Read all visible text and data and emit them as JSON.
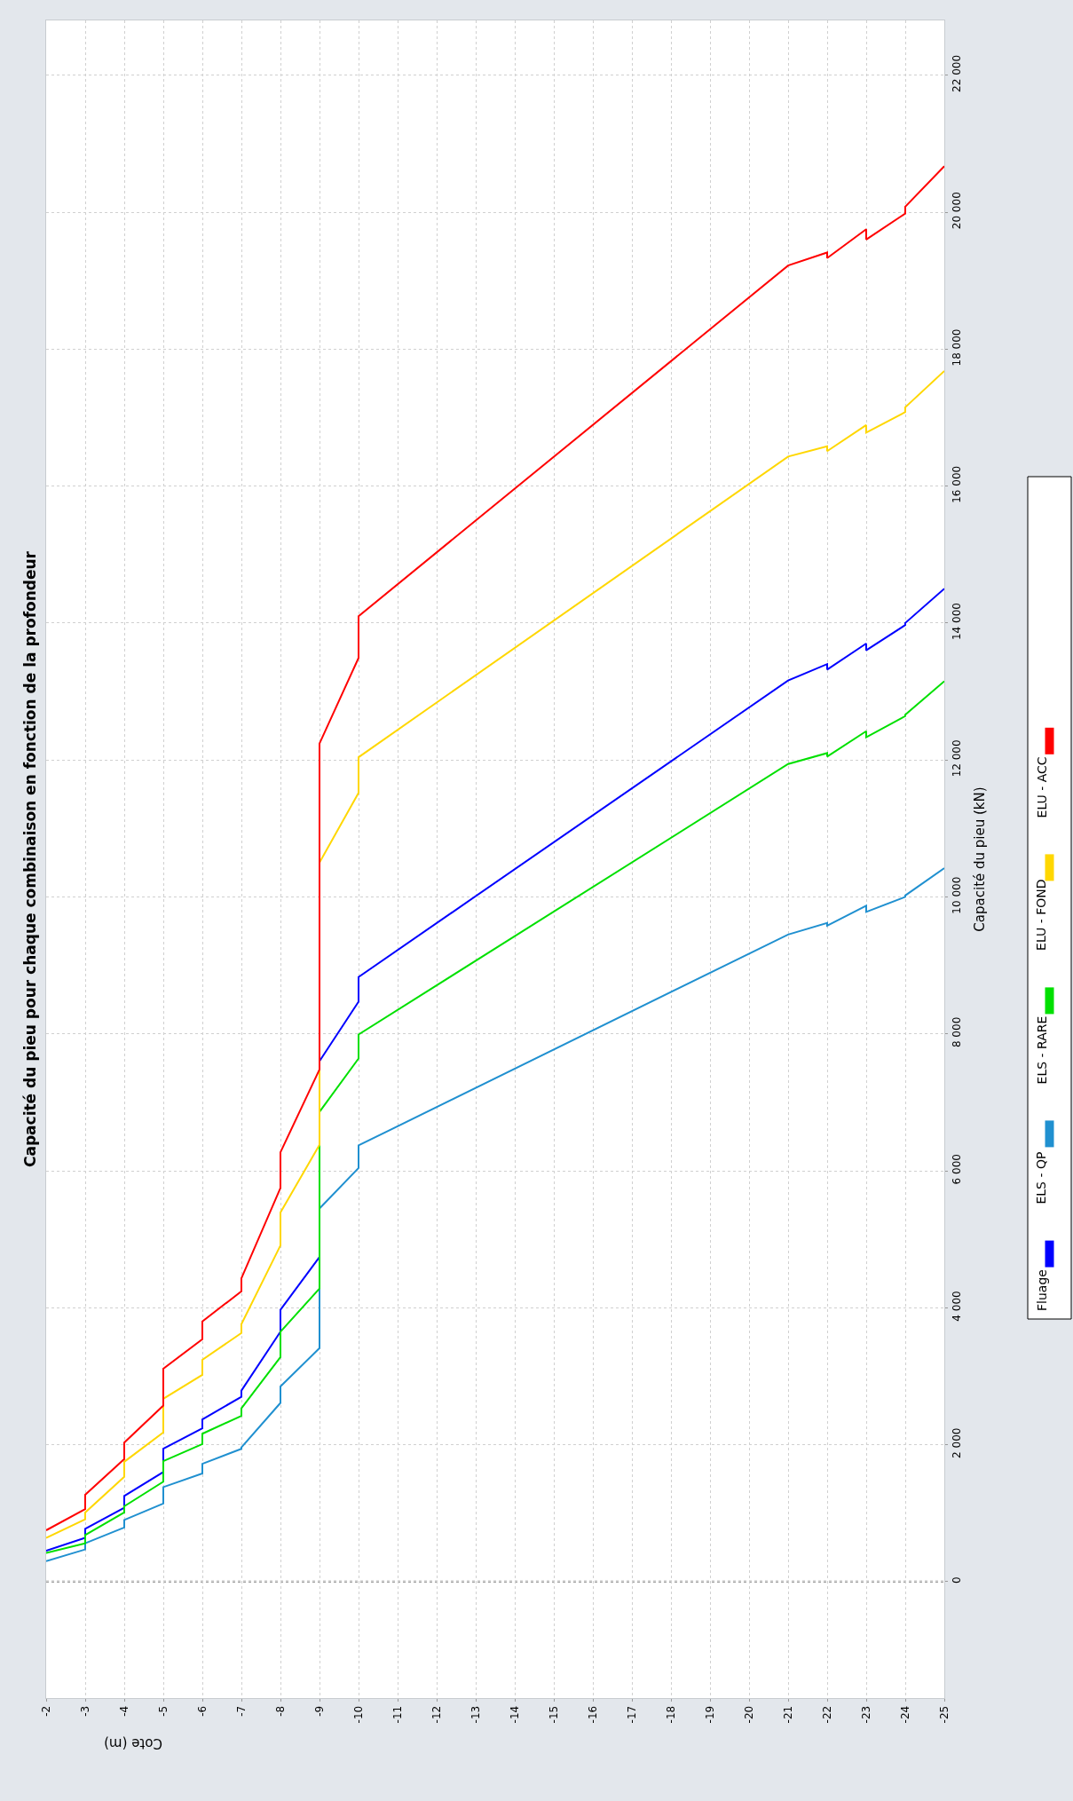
{
  "chart_data": {
    "type": "line",
    "title": "Capacité du pieu pour chaque combinaison en fonction de la profondeur",
    "xlabel": "Cote (m)",
    "ylabel": "Capacité du pieu (kN)",
    "xlim": [
      -2,
      -25
    ],
    "xticks": [
      -2,
      -3,
      -4,
      -5,
      -6,
      -7,
      -8,
      -9,
      -10,
      -11,
      -12,
      -13,
      -14,
      -15,
      -16,
      -17,
      -18,
      -19,
      -20,
      -21,
      -22,
      -23,
      -24,
      -25
    ],
    "ylim": [
      -1700,
      22800
    ],
    "yticks": [
      {
        "value": 0,
        "label": "0"
      },
      {
        "value": 2000,
        "label": "2 000"
      },
      {
        "value": 4000,
        "label": "4 000"
      },
      {
        "value": 6000,
        "label": "6 000"
      },
      {
        "value": 8000,
        "label": "8 000"
      },
      {
        "value": 10000,
        "label": "10 000"
      },
      {
        "value": 12000,
        "label": "12 000"
      },
      {
        "value": 14000,
        "label": "14 000"
      },
      {
        "value": 16000,
        "label": "16 000"
      },
      {
        "value": 18000,
        "label": "18 000"
      },
      {
        "value": 20000,
        "label": "20 000"
      },
      {
        "value": 22000,
        "label": "22 000"
      }
    ],
    "grid": true,
    "legend": "right",
    "marker": "none",
    "line_style": "solid",
    "ref_lines": [
      {
        "axis": "y",
        "value": 0,
        "color": "#808080",
        "line_style": "dotted"
      }
    ],
    "series": [
      {
        "name": "Fluage",
        "color": "#0000ff",
        "x": [
          -2,
          -3,
          -3,
          -4,
          -4,
          -5,
          -5,
          -6,
          -6,
          -7,
          -7,
          -8,
          -8,
          -9,
          -9,
          -10,
          -10,
          -21,
          -22,
          -22,
          -23,
          -23,
          -24,
          -24,
          -25
        ],
        "values": [
          450,
          640,
          770,
          1080,
          1250,
          1600,
          1940,
          2240,
          2370,
          2700,
          2790,
          3650,
          3970,
          4740,
          7600,
          8470,
          8830,
          13160,
          13400,
          13320,
          13700,
          13600,
          13970,
          14000,
          14500
        ]
      },
      {
        "name": "ELS - QP",
        "color": "#2090d0",
        "x": [
          -2,
          -3,
          -3,
          -4,
          -4,
          -5,
          -5,
          -6,
          -6,
          -7,
          -7,
          -8,
          -8,
          -9,
          -9,
          -10,
          -10,
          -21,
          -22,
          -22,
          -23,
          -23,
          -24,
          -24,
          -25
        ],
        "values": [
          300,
          470,
          560,
          790,
          900,
          1140,
          1380,
          1580,
          1720,
          1940,
          1960,
          2610,
          2850,
          3410,
          5450,
          6040,
          6370,
          9450,
          9620,
          9580,
          9870,
          9780,
          10000,
          10020,
          10420
        ]
      },
      {
        "name": "ELS - RARE",
        "color": "#00e000",
        "x": [
          -2,
          -3,
          -3,
          -4,
          -4,
          -5,
          -5,
          -6,
          -6,
          -7,
          -7,
          -8,
          -8,
          -9,
          -9,
          -10,
          -10,
          -21,
          -22,
          -22,
          -23,
          -23,
          -24,
          -24,
          -25
        ],
        "values": [
          420,
          560,
          680,
          1010,
          1100,
          1460,
          1760,
          2010,
          2160,
          2420,
          2530,
          3280,
          3650,
          4280,
          6860,
          7640,
          7990,
          11940,
          12100,
          12050,
          12420,
          12330,
          12640,
          12660,
          13150
        ]
      },
      {
        "name": "ELU - FOND",
        "color": "#ffd700",
        "x": [
          -2,
          -3,
          -3,
          -4,
          -4,
          -5,
          -5,
          -6,
          -6,
          -7,
          -7,
          -8,
          -8,
          -9,
          -9,
          -10,
          -10,
          -21,
          -22,
          -22,
          -23,
          -23,
          -24,
          -24,
          -25
        ],
        "values": [
          640,
          910,
          1010,
          1530,
          1750,
          2180,
          2670,
          3020,
          3240,
          3630,
          3760,
          4910,
          5390,
          6380,
          10500,
          11520,
          12040,
          16430,
          16580,
          16510,
          16890,
          16780,
          17080,
          17150,
          17680
        ]
      },
      {
        "name": "ELU - ACC",
        "color": "#ff0000",
        "x": [
          -2,
          -3,
          -3,
          -4,
          -4,
          -5,
          -5,
          -6,
          -6,
          -7,
          -7,
          -8,
          -8,
          -9,
          -9,
          -10,
          -10,
          -21,
          -22,
          -22,
          -23,
          -23,
          -24,
          -24,
          -25
        ],
        "values": [
          750,
          1060,
          1270,
          1790,
          2030,
          2570,
          3110,
          3540,
          3800,
          4240,
          4430,
          5750,
          6270,
          7480,
          12240,
          13490,
          14100,
          19220,
          19410,
          19330,
          19750,
          19600,
          19980,
          20080,
          20670
        ]
      }
    ]
  }
}
